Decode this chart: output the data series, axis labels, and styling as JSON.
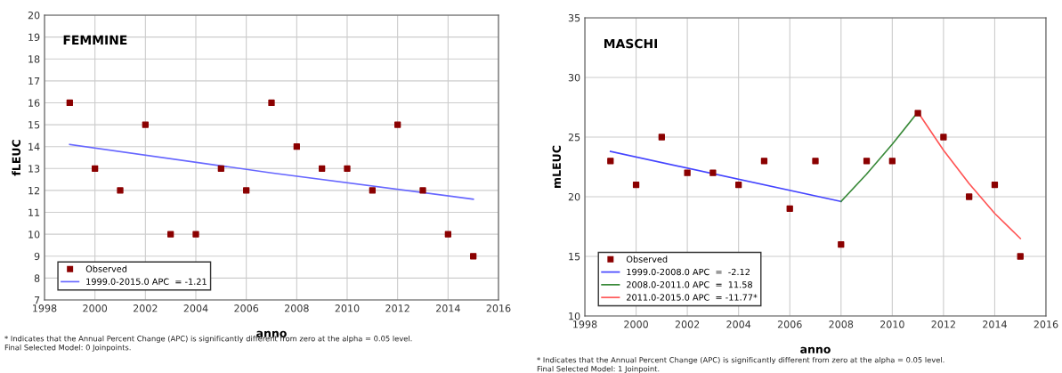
{
  "chart_data": [
    {
      "type": "scatter",
      "title": "FEMMINE",
      "xlabel": "anno",
      "ylabel": "fLEUC",
      "xlim": [
        1998,
        2016
      ],
      "xticks": [
        1998,
        2000,
        2002,
        2004,
        2006,
        2008,
        2010,
        2012,
        2014,
        2016
      ],
      "ylim": [
        7,
        20
      ],
      "yticks": [
        7,
        8,
        9,
        10,
        11,
        12,
        13,
        14,
        15,
        16,
        17,
        18,
        19,
        20
      ],
      "grid": true,
      "legend": "bottom left",
      "x": [
        1999,
        2000,
        2001,
        2002,
        2003,
        2004,
        2005,
        2006,
        2007,
        2008,
        2009,
        2010,
        2011,
        2012,
        2013,
        2014,
        2015
      ],
      "series": [
        {
          "name": "Observed",
          "color": "#8b0000",
          "marker": "square",
          "values": [
            16,
            13,
            12,
            15,
            10,
            10,
            13,
            12,
            16,
            14,
            13,
            13,
            12,
            15,
            12,
            10,
            9
          ]
        },
        {
          "name": "1999.0-2015.0 APC  = -1.21",
          "type": "line",
          "color": "#6666ff",
          "marker": "none",
          "x": [
            1999,
            2007,
            2015
          ],
          "values": [
            14.1,
            12.8,
            11.6
          ]
        }
      ],
      "annotations": [
        "* Indicates that the Annual Percent Change (APC) is significantly different from zero at the alpha = 0.05 level.",
        "Final Selected Model: 0 Joinpoints."
      ]
    },
    {
      "type": "scatter",
      "title": "MASCHI",
      "xlabel": "anno",
      "ylabel": "mLEUC",
      "xlim": [
        1998,
        2016
      ],
      "xticks": [
        1998,
        2000,
        2002,
        2004,
        2006,
        2008,
        2010,
        2012,
        2014,
        2016
      ],
      "ylim": [
        10,
        35
      ],
      "yticks": [
        10,
        15,
        20,
        25,
        30,
        35
      ],
      "grid": true,
      "legend": "bottom left",
      "x": [
        1999,
        2000,
        2001,
        2002,
        2003,
        2004,
        2005,
        2006,
        2007,
        2008,
        2009,
        2010,
        2011,
        2012,
        2013,
        2014,
        2015
      ],
      "series": [
        {
          "name": "Observed",
          "color": "#8b0000",
          "marker": "square",
          "values": [
            23,
            21,
            25,
            22,
            22,
            21,
            23,
            19,
            23,
            16,
            23,
            23,
            27,
            25,
            20,
            21,
            15
          ]
        },
        {
          "name": "1999.0-2008.0 APC  =  -2.12",
          "type": "line",
          "color": "#4444ff",
          "marker": "none",
          "x": [
            1999,
            2008
          ],
          "values": [
            23.8,
            19.6
          ]
        },
        {
          "name": "2008.0-2011.0 APC  =  11.58",
          "type": "line",
          "color": "#3a8a3a",
          "marker": "none",
          "x": [
            2008,
            2009,
            2010,
            2011
          ],
          "values": [
            19.6,
            21.9,
            24.4,
            27.1
          ]
        },
        {
          "name": "2011.0-2015.0 APC  = -11.77*",
          "type": "line",
          "color": "#ff5555",
          "marker": "none",
          "x": [
            2011,
            2012,
            2013,
            2014,
            2015
          ],
          "values": [
            27.1,
            23.9,
            21.1,
            18.6,
            16.5
          ]
        }
      ],
      "annotations": [
        "* Indicates that the Annual Percent Change (APC) is significantly different from zero at the alpha = 0.05 level.",
        "Final Selected Model: 1 Joinpoint."
      ]
    }
  ]
}
